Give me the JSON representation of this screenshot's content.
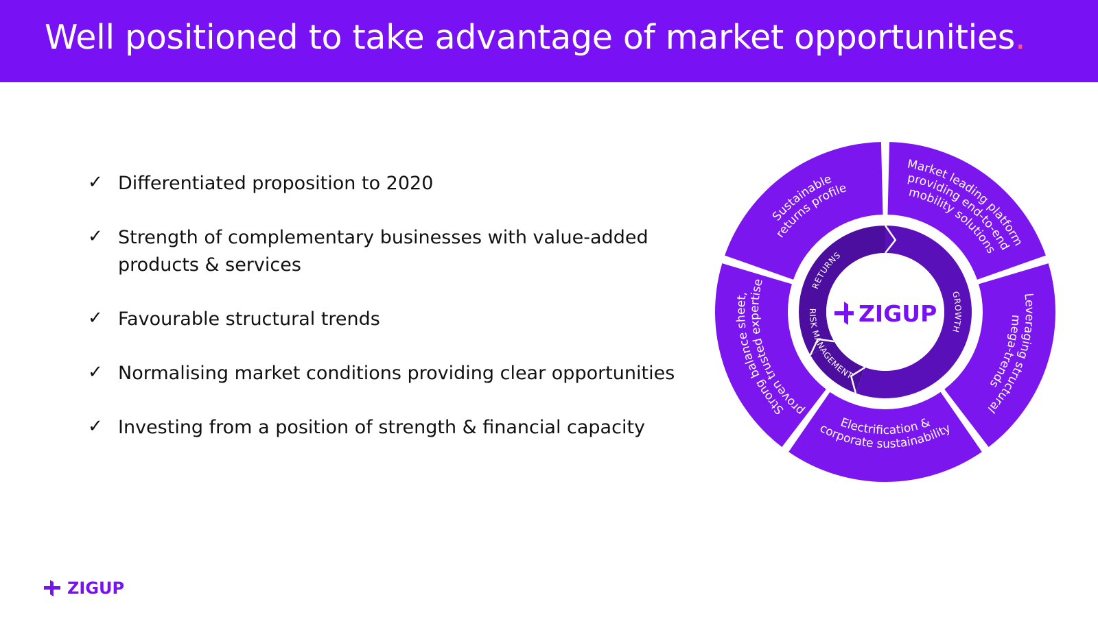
{
  "header": {
    "title": "Well positioned to take advantage of market opportunities",
    "title_dot": ".",
    "background_color": "#7811f3",
    "dot_color": "#ff5a7d"
  },
  "bullets": [
    {
      "check": "✓",
      "text": "Differentiated proposition to 2020"
    },
    {
      "check": "✓",
      "text": "Strength of complementary businesses with value-added products & services"
    },
    {
      "check": "✓",
      "text": "Favourable structural trends"
    },
    {
      "check": "✓",
      "text": "Normalising market conditions providing clear opportunities"
    },
    {
      "check": "✓",
      "text": "Investing from a position of strength & financial capacity"
    }
  ],
  "wheel": {
    "center_logo_text": "ZIGUP",
    "outer_segments": [
      {
        "lines": [
          "Sustainable",
          "returns profile"
        ]
      },
      {
        "lines": [
          "Market leading platform",
          "providing end-to-end",
          "mobility solutions"
        ]
      },
      {
        "lines": [
          "Leveraging structural",
          "mega-trends"
        ]
      },
      {
        "lines": [
          "Electrification &",
          "corporate sustainability"
        ]
      },
      {
        "lines": [
          "Strong balance sheet,",
          "proven trusted expertise"
        ]
      }
    ],
    "inner_ring": {
      "returns": "RETURNS",
      "growth": "GROWTH",
      "risk_management": "RISK MANAGEMENT"
    },
    "colors": {
      "outer": "#7c16ee",
      "inner_dark": "#4c0e9e",
      "inner_mid": "#5a10b8",
      "label": "#ffffff",
      "logo": "#7811f3"
    }
  },
  "footer": {
    "logo_text": "ZIGUP"
  }
}
